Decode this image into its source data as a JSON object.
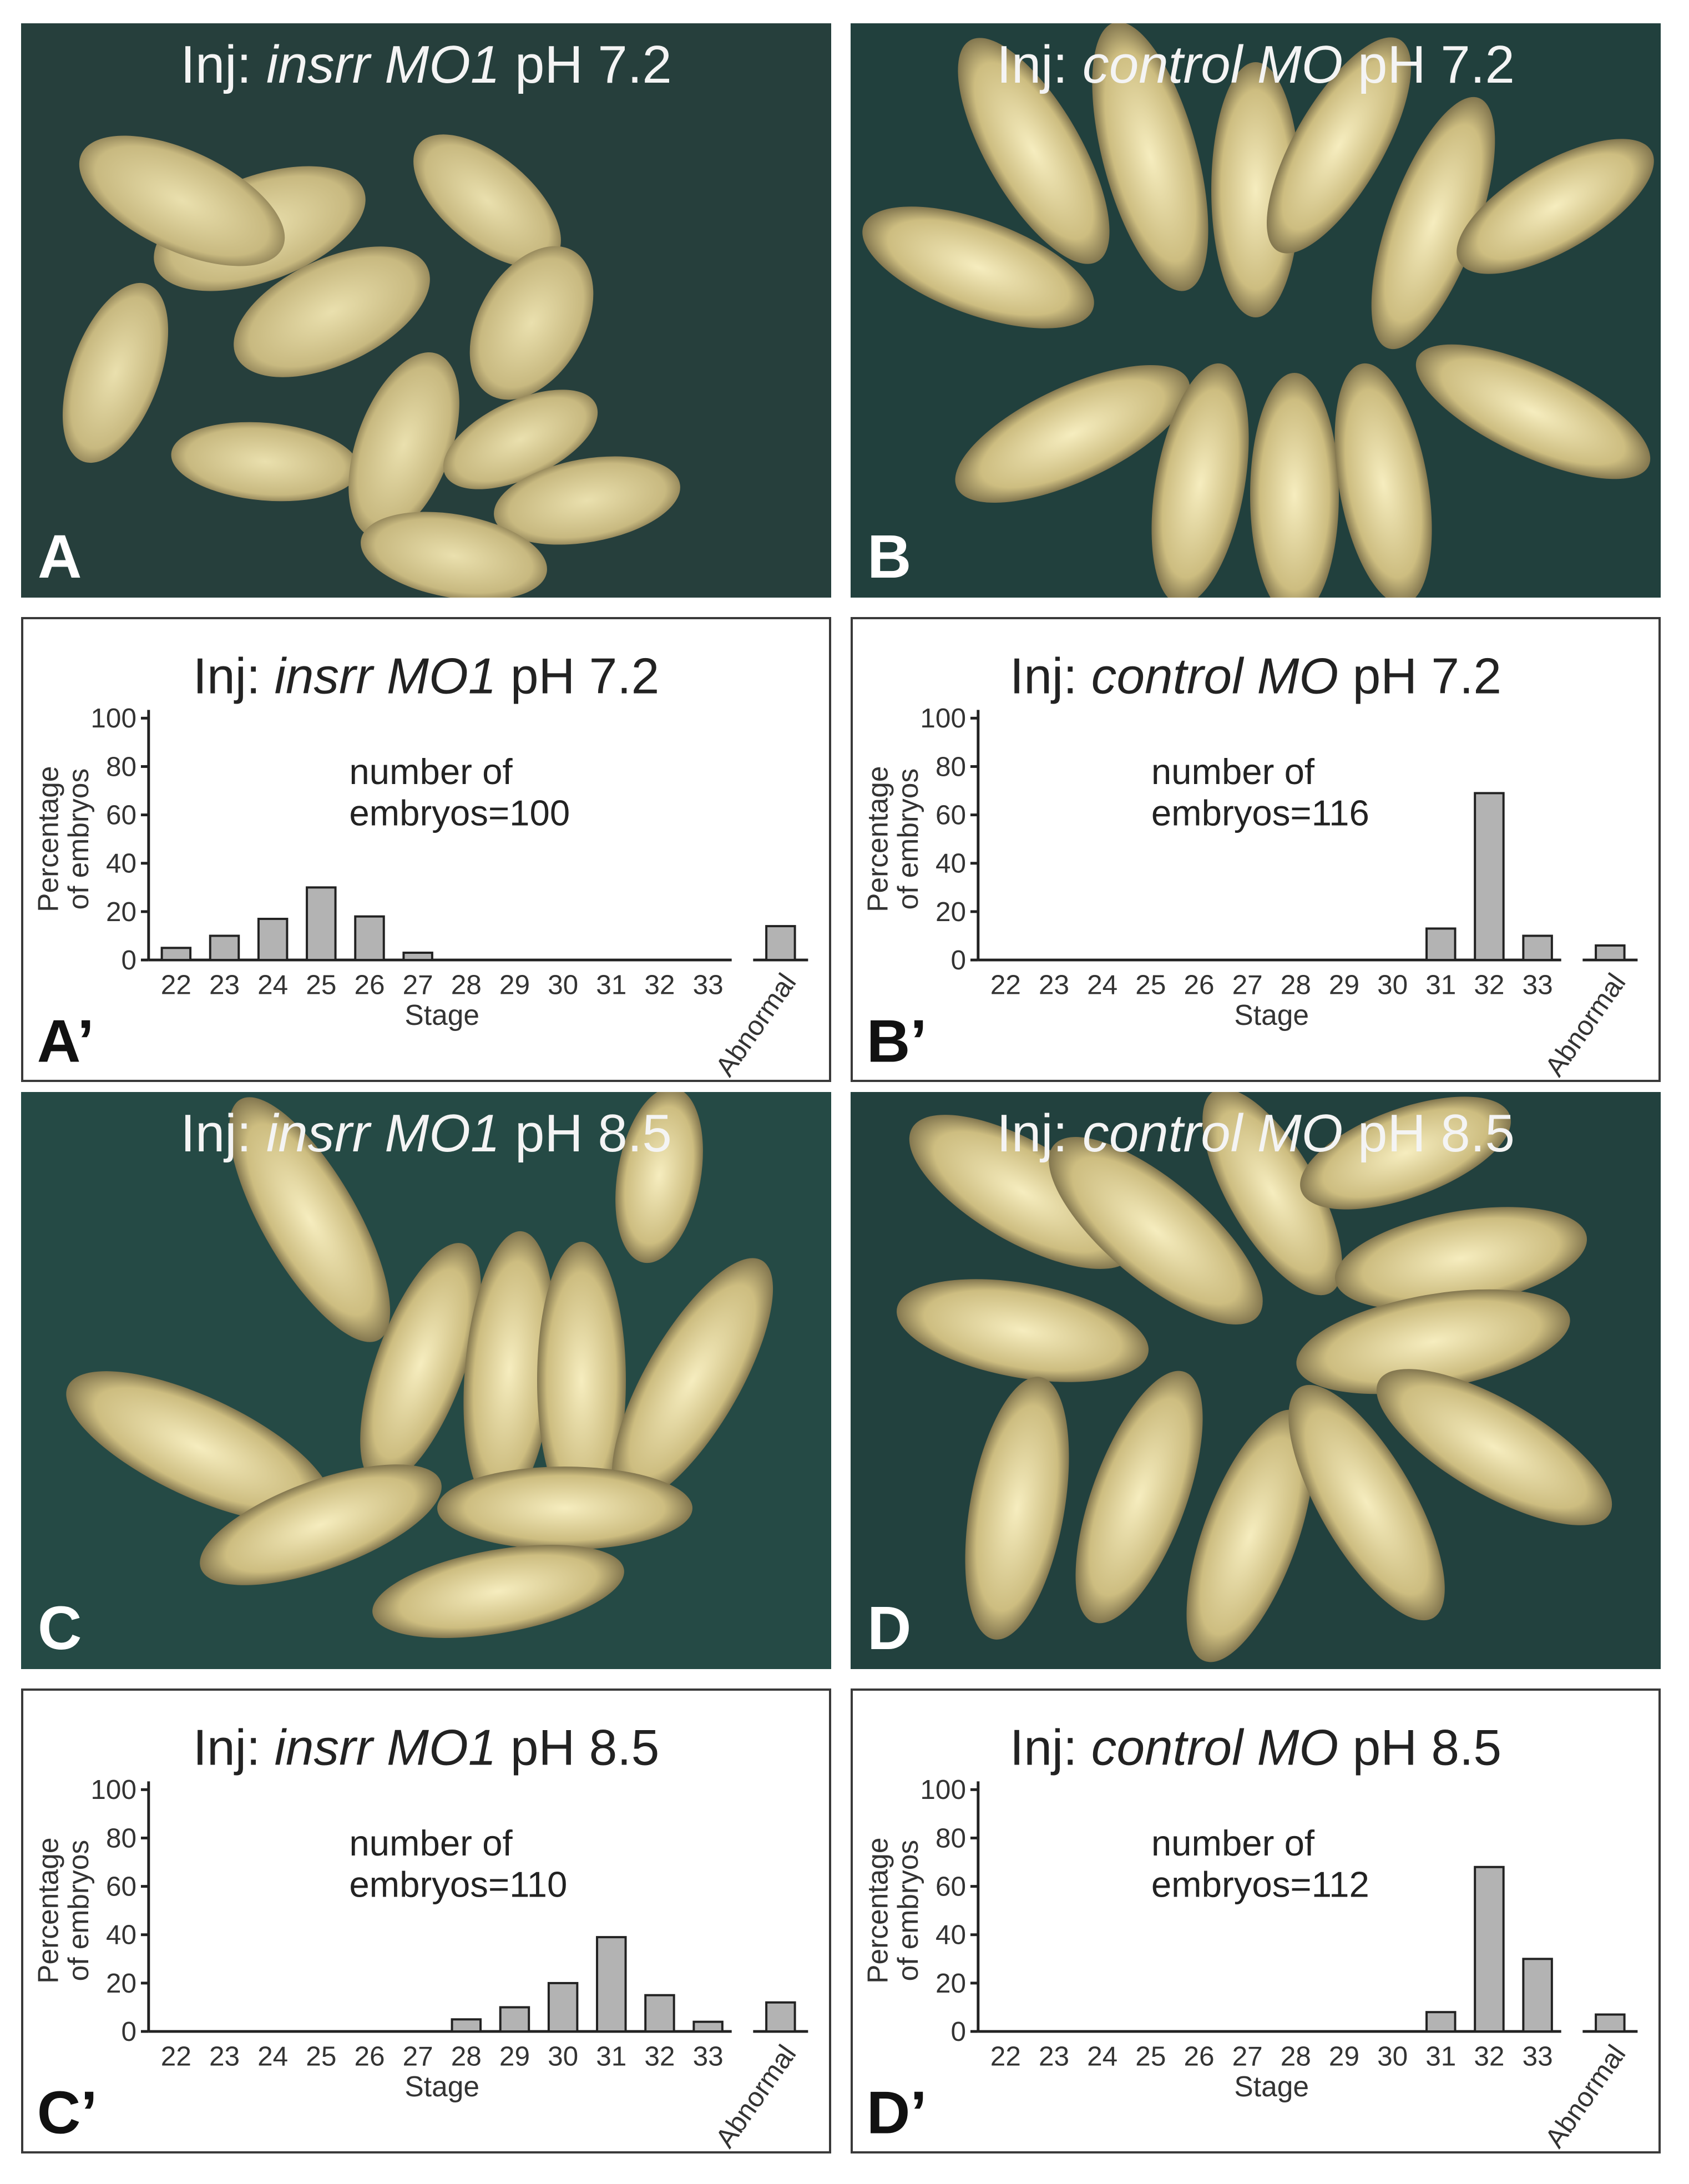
{
  "photos": [
    {
      "id": "A",
      "letter": "A",
      "inj": "Inj: ",
      "morpholino": "insrr MO1",
      "ph": " pH 7.2"
    },
    {
      "id": "B",
      "letter": "B",
      "inj": "Inj: ",
      "morpholino": "control MO",
      "ph": " pH 7.2"
    },
    {
      "id": "C",
      "letter": "C",
      "inj": "Inj: ",
      "morpholino": "insrr MO1",
      "ph": " pH 8.5"
    },
    {
      "id": "D",
      "letter": "D",
      "inj": "Inj: ",
      "morpholino": "control MO",
      "ph": " pH 8.5"
    }
  ],
  "chart_data": [
    {
      "type": "bar",
      "panel": "A’",
      "title_prefix": "Inj: ",
      "title_italic": "insrr MO1",
      "title_suffix": " pH 7.2",
      "note_line1": "number of",
      "note_line2": "embryos=100",
      "categories": [
        "22",
        "23",
        "24",
        "25",
        "26",
        "27",
        "28",
        "29",
        "30",
        "31",
        "32",
        "33"
      ],
      "values": [
        5,
        10,
        17,
        30,
        18,
        3,
        0,
        0,
        0,
        0,
        0,
        0
      ],
      "abnormal_label": "Abnormal",
      "abnormal_value": 14,
      "xlabel": "Stage",
      "ylabel_line1": "Percentage",
      "ylabel_line2": "of embryos",
      "ylim": [
        0,
        100
      ],
      "yticks": [
        "0",
        "20",
        "40",
        "60",
        "80",
        "100"
      ]
    },
    {
      "type": "bar",
      "panel": "B’",
      "title_prefix": "Inj: ",
      "title_italic": "control MO",
      "title_suffix": " pH 7.2",
      "note_line1": "number of",
      "note_line2": "embryos=116",
      "categories": [
        "22",
        "23",
        "24",
        "25",
        "26",
        "27",
        "28",
        "29",
        "30",
        "31",
        "32",
        "33"
      ],
      "values": [
        0,
        0,
        0,
        0,
        0,
        0,
        0,
        0,
        0,
        13,
        69,
        10
      ],
      "abnormal_label": "Abnormal",
      "abnormal_value": 6,
      "xlabel": "Stage",
      "ylabel_line1": "Percentage",
      "ylabel_line2": "of embryos",
      "ylim": [
        0,
        100
      ],
      "yticks": [
        "0",
        "20",
        "40",
        "60",
        "80",
        "100"
      ]
    },
    {
      "type": "bar",
      "panel": "C’",
      "title_prefix": "Inj: ",
      "title_italic": "insrr MO1",
      "title_suffix": " pH 8.5",
      "note_line1": "number of",
      "note_line2": "embryos=110",
      "categories": [
        "22",
        "23",
        "24",
        "25",
        "26",
        "27",
        "28",
        "29",
        "30",
        "31",
        "32",
        "33"
      ],
      "values": [
        0,
        0,
        0,
        0,
        0,
        0,
        5,
        10,
        20,
        39,
        15,
        4
      ],
      "abnormal_label": "Abnormal",
      "abnormal_value": 12,
      "xlabel": "Stage",
      "ylabel_line1": "Percentage",
      "ylabel_line2": "of embryos",
      "ylim": [
        0,
        100
      ],
      "yticks": [
        "0",
        "20",
        "40",
        "60",
        "80",
        "100"
      ]
    },
    {
      "type": "bar",
      "panel": "D’",
      "title_prefix": "Inj: ",
      "title_italic": "control MO",
      "title_suffix": " pH 8.5",
      "note_line1": "number of",
      "note_line2": "embryos=112",
      "categories": [
        "22",
        "23",
        "24",
        "25",
        "26",
        "27",
        "28",
        "29",
        "30",
        "31",
        "32",
        "33"
      ],
      "values": [
        0,
        0,
        0,
        0,
        0,
        0,
        0,
        0,
        0,
        8,
        68,
        30
      ],
      "abnormal_label": "Abnormal",
      "abnormal_value": 7,
      "xlabel": "Stage",
      "ylabel_line1": "Percentage",
      "ylabel_line2": "of embryos",
      "ylim": [
        0,
        100
      ],
      "yticks": [
        "0",
        "20",
        "40",
        "60",
        "80",
        "100"
      ]
    }
  ],
  "colors": {
    "bar_fill": "#b3b3b3",
    "photo_bg": "#24443f",
    "embryo": "#cbbf86"
  }
}
